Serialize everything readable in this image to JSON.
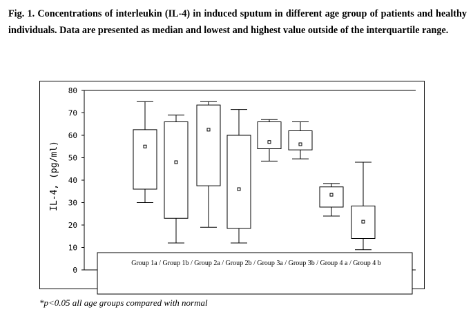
{
  "caption": "Fig. 1. Concentrations of interleukin (IL-4) in induced sputum in different age group of patients and healthy individuals. Data are presented as median and lowest and highest value outside of the interquartile range.",
  "footnote": "*p<0.05 all age groups compared with normal",
  "chart_data": {
    "type": "box",
    "ylabel": "IL-4, (pg/ml)",
    "ylim": [
      0,
      80
    ],
    "yticks": [
      0,
      10,
      20,
      30,
      40,
      50,
      60,
      70,
      80
    ],
    "legend_text": "Group 1a / Group 1b / Group 2a / Group 2b / Group 3a / Group 3b / Group 4 a / Group 4 b",
    "boxes": [
      {
        "whisker_low": 30,
        "q1": 36,
        "median": 55,
        "q3": 62.5,
        "whisker_high": 75
      },
      {
        "whisker_low": 12,
        "q1": 23,
        "median": 48,
        "q3": 66,
        "whisker_high": 69
      },
      {
        "whisker_low": 19,
        "q1": 37.5,
        "median": 62.5,
        "q3": 73.5,
        "whisker_high": 75
      },
      {
        "whisker_low": 12,
        "q1": 18.5,
        "median": 36,
        "q3": 60,
        "whisker_high": 71.5
      },
      {
        "whisker_low": 48.5,
        "q1": 54,
        "median": 57,
        "q3": 66,
        "whisker_high": 67
      },
      {
        "whisker_low": 49.5,
        "q1": 53.5,
        "median": 56,
        "q3": 62,
        "whisker_high": 66
      },
      {
        "whisker_low": 24,
        "q1": 28,
        "median": 33.5,
        "q3": 37,
        "whisker_high": 38.5
      },
      {
        "whisker_low": 9,
        "q1": 14,
        "median": 21.5,
        "q3": 28.5,
        "whisker_high": 48
      }
    ]
  }
}
